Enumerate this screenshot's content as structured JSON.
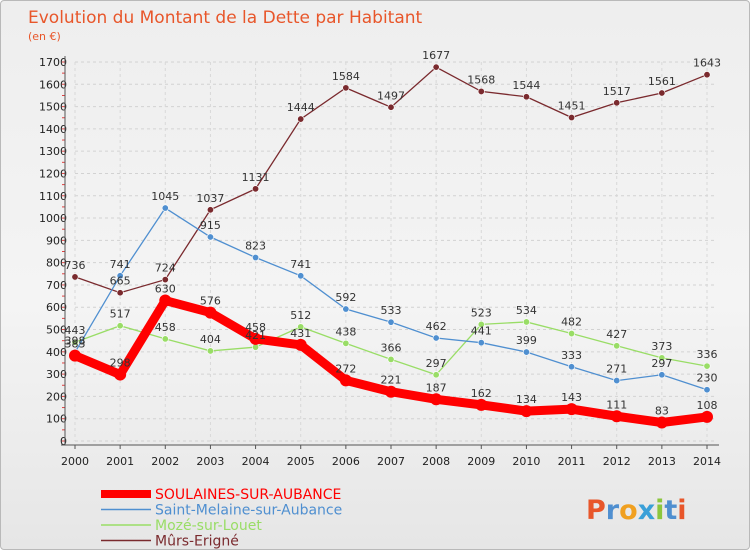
{
  "chart_data": {
    "type": "line",
    "title": "Evolution du Montant de la Dette par Habitant",
    "subtitle": "(en €)",
    "x": [
      "2000",
      "2001",
      "2002",
      "2003",
      "2004",
      "2005",
      "2006",
      "2007",
      "2008",
      "2009",
      "2010",
      "2011",
      "2012",
      "2013",
      "2014"
    ],
    "ylim": [
      0,
      1700
    ],
    "yticks": [
      0,
      100,
      200,
      300,
      400,
      500,
      600,
      700,
      800,
      900,
      1000,
      1100,
      1200,
      1300,
      1400,
      1500,
      1600,
      1700
    ],
    "grid": "y-dashed",
    "legend_placement": "bottom-left",
    "series": [
      {
        "name": "SOULAINES-SUR-AUBANCE",
        "color": "#ff0000",
        "emphasis": true,
        "values": [
          383,
          298,
          630,
          576,
          458,
          431,
          272,
          221,
          187,
          162,
          134,
          143,
          111,
          83,
          108
        ],
        "labels": [
          "383",
          "298",
          "630",
          "576",
          "458",
          "431",
          "272",
          "221",
          "187",
          "162",
          "134",
          "143",
          "111",
          "83",
          "108"
        ]
      },
      {
        "name": "Saint-Melaine-sur-Aubance",
        "color": "#4f8fd0",
        "values": [
          398,
          741,
          1045,
          915,
          823,
          741,
          592,
          533,
          462,
          441,
          399,
          333,
          271,
          297,
          230
        ],
        "labels": [
          "398",
          "741",
          "1045",
          "915",
          "823",
          "741",
          "592",
          "533",
          "462",
          "441",
          "399",
          "333",
          "271",
          "297",
          "230"
        ]
      },
      {
        "name": "Mozé-sur-Louet",
        "color": "#99dd66",
        "values": [
          443,
          517,
          458,
          404,
          421,
          512,
          438,
          366,
          297,
          523,
          534,
          482,
          427,
          373,
          336
        ],
        "labels": [
          "443",
          "517",
          "458",
          "404",
          "421",
          "512",
          "438",
          "366",
          "297",
          "523",
          "534",
          "482",
          "427",
          "373",
          "336"
        ]
      },
      {
        "name": "Mûrs-Erigné",
        "color": "#7a2a2e",
        "values": [
          736,
          665,
          724,
          1037,
          1131,
          1444,
          1584,
          1497,
          1677,
          1568,
          1544,
          1451,
          1517,
          1561,
          1643
        ],
        "labels": [
          "736",
          "665",
          "724",
          "1037",
          "1131",
          "1444",
          "1584",
          "1497",
          "1677",
          "1568",
          "1544",
          "1451",
          "1517",
          "1561",
          "1643"
        ]
      }
    ]
  },
  "logo": {
    "text": "Proxiti"
  }
}
